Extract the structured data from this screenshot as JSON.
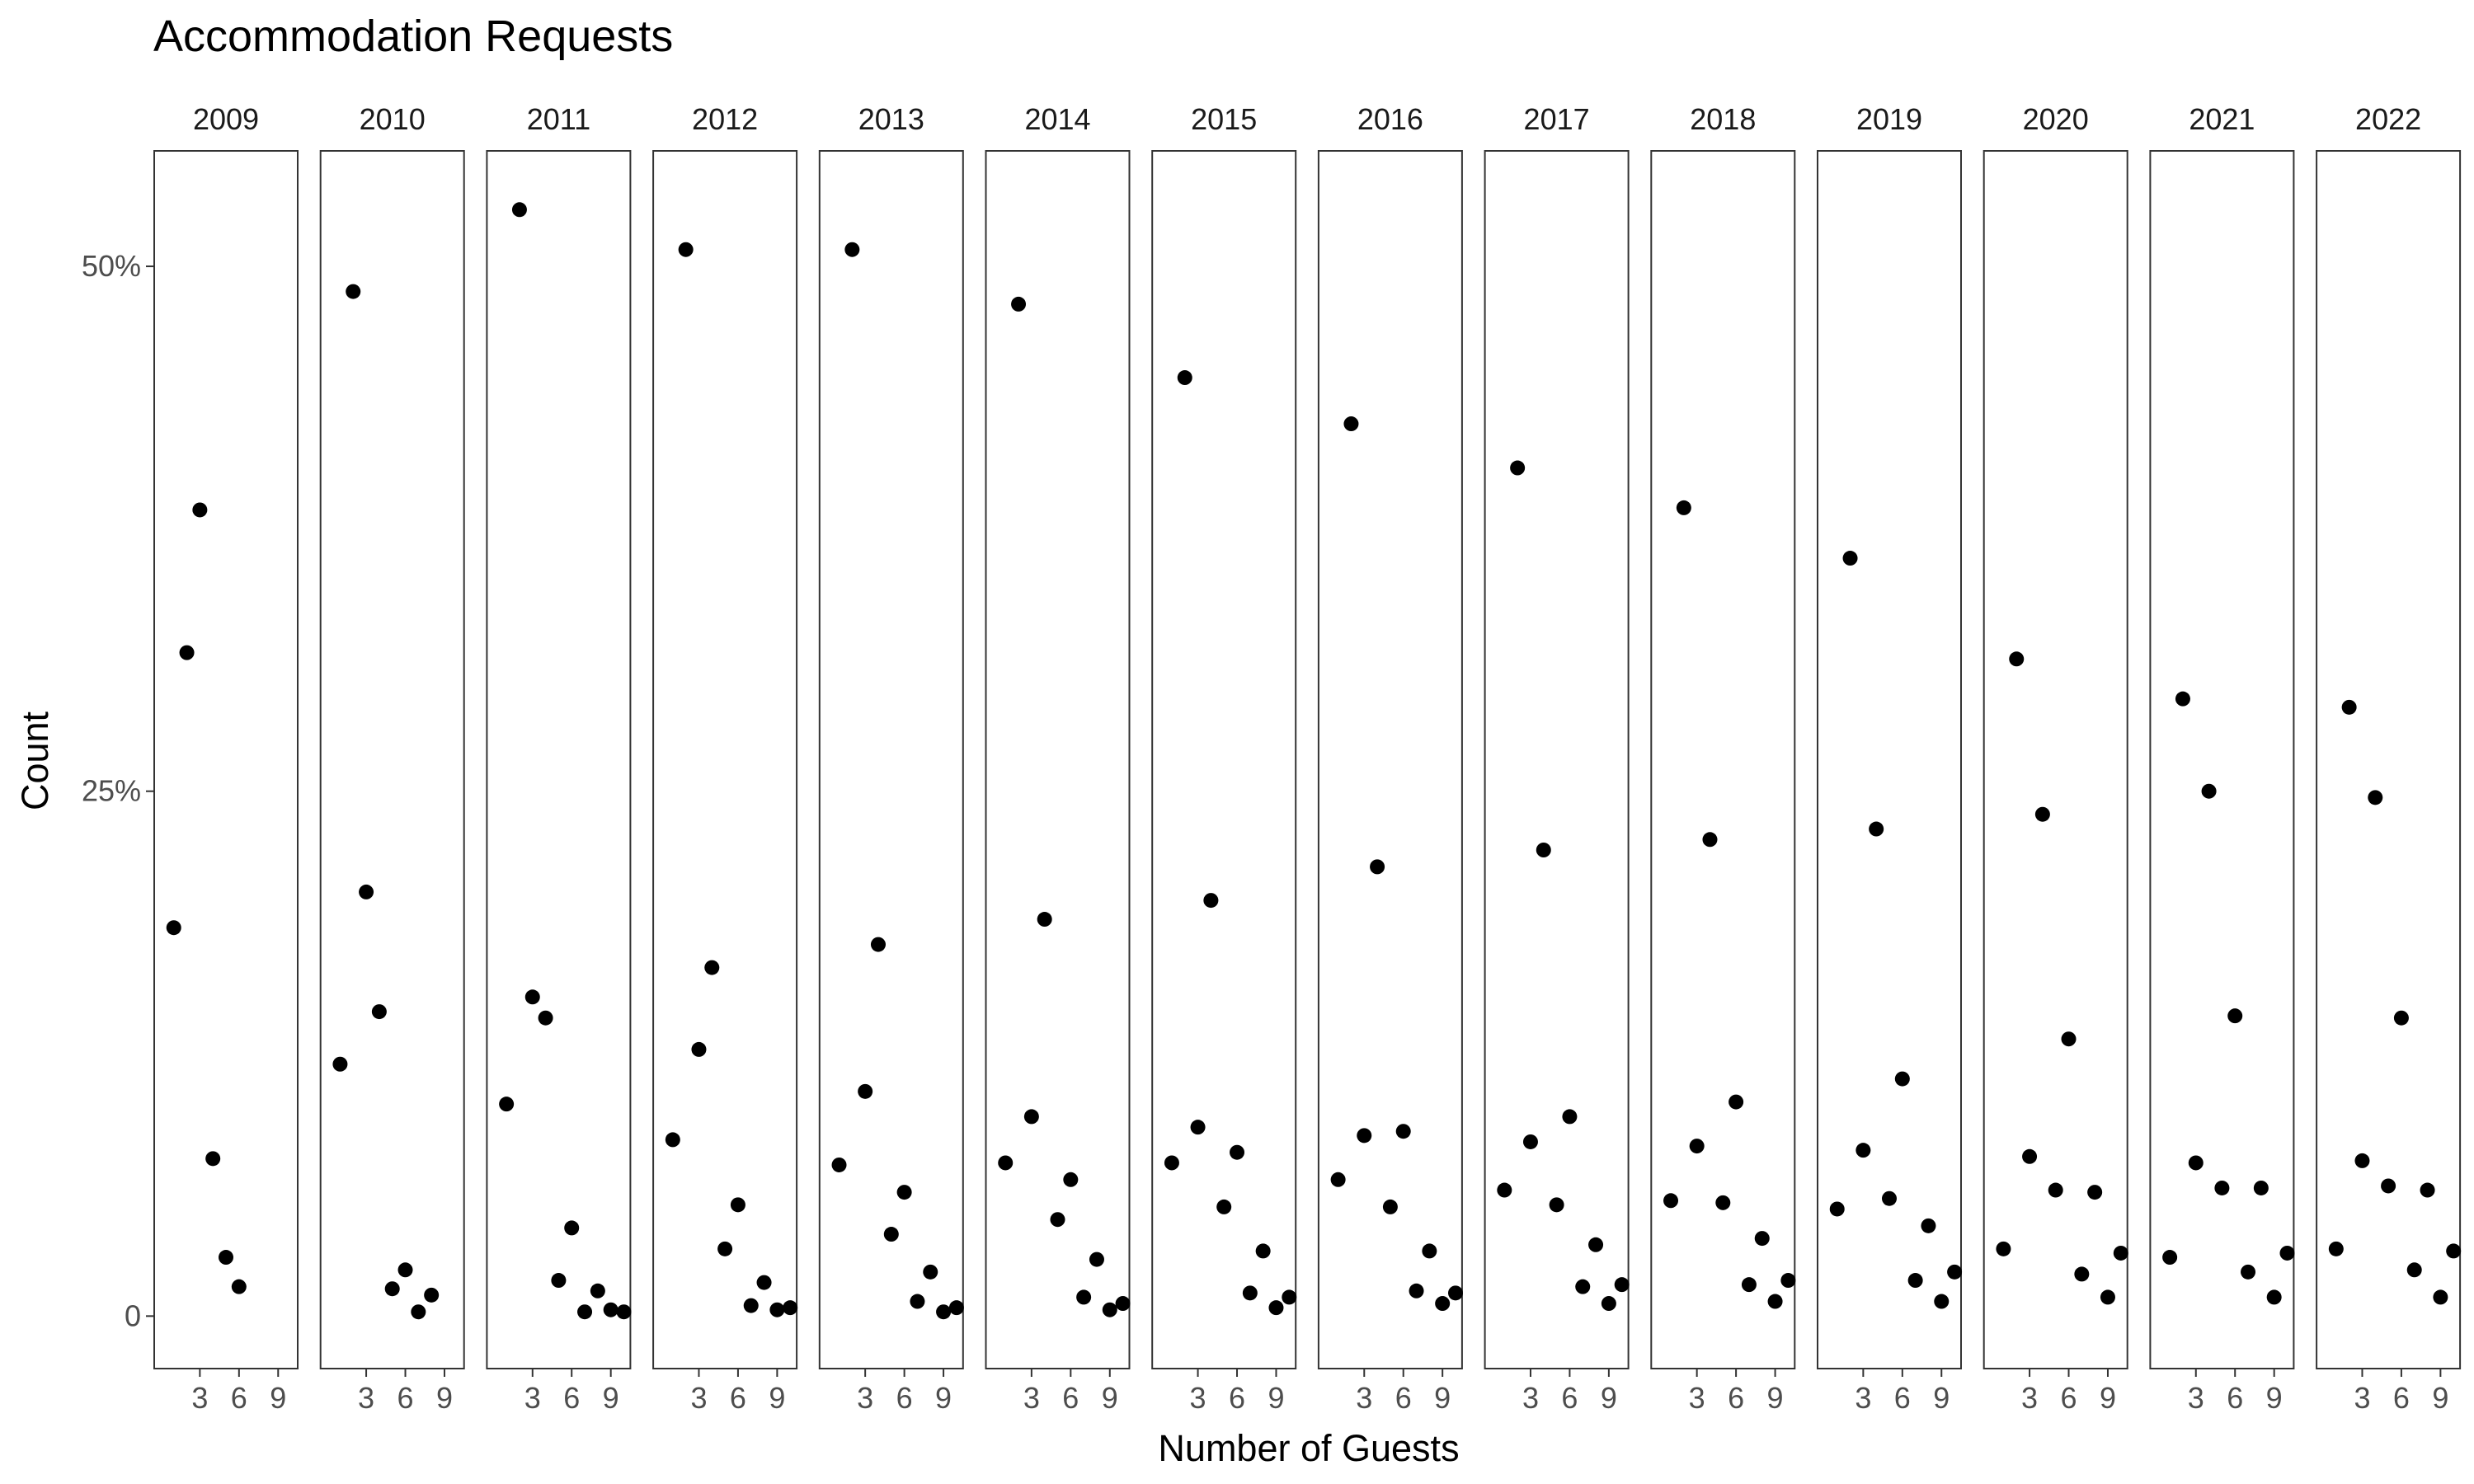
{
  "chart_data": {
    "type": "scatter",
    "title": "Accommodation Requests",
    "xlabel": "Number of Guests",
    "ylabel": "Count",
    "facet_by": "year",
    "xlim": [
      -0.5,
      10.5
    ],
    "ylim": [
      -2.5,
      55.5
    ],
    "x_ticks": [
      3,
      6,
      9
    ],
    "y_ticks": [
      0,
      25,
      50
    ],
    "y_tick_labels": [
      "0",
      "25%",
      "50%"
    ],
    "grid": false,
    "legend": "none",
    "point_color": "#000000",
    "panels": [
      {
        "label": "2009",
        "x": [
          1,
          2,
          3,
          4,
          5,
          6
        ],
        "y": [
          18.5,
          31.6,
          38.4,
          7.5,
          2.8,
          1.4
        ]
      },
      {
        "label": "2010",
        "x": [
          1,
          2,
          3,
          4,
          5,
          6,
          7,
          8
        ],
        "y": [
          12.0,
          48.8,
          20.2,
          14.5,
          1.3,
          2.2,
          0.2,
          1.0
        ]
      },
      {
        "label": "2011",
        "x": [
          1,
          2,
          3,
          4,
          5,
          6,
          7,
          8,
          9,
          10
        ],
        "y": [
          10.1,
          52.7,
          15.2,
          14.2,
          1.7,
          4.2,
          0.2,
          1.2,
          0.3,
          0.2
        ]
      },
      {
        "label": "2012",
        "x": [
          1,
          2,
          3,
          4,
          5,
          6,
          7,
          8,
          9,
          10
        ],
        "y": [
          8.4,
          50.8,
          12.7,
          16.6,
          3.2,
          5.3,
          0.5,
          1.6,
          0.3,
          0.4
        ]
      },
      {
        "label": "2013",
        "x": [
          1,
          2,
          3,
          4,
          5,
          6,
          7,
          8,
          9,
          10
        ],
        "y": [
          7.2,
          50.8,
          10.7,
          17.7,
          3.9,
          5.9,
          0.7,
          2.1,
          0.2,
          0.4
        ]
      },
      {
        "label": "2014",
        "x": [
          1,
          2,
          3,
          4,
          5,
          6,
          7,
          8,
          9,
          10
        ],
        "y": [
          7.3,
          48.2,
          9.5,
          18.9,
          4.6,
          6.5,
          0.9,
          2.7,
          0.3,
          0.6
        ]
      },
      {
        "label": "2015",
        "x": [
          1,
          2,
          3,
          4,
          5,
          6,
          7,
          8,
          9,
          10
        ],
        "y": [
          7.3,
          44.7,
          9.0,
          19.8,
          5.2,
          7.8,
          1.1,
          3.1,
          0.4,
          0.9
        ]
      },
      {
        "label": "2016",
        "x": [
          1,
          2,
          3,
          4,
          5,
          6,
          7,
          8,
          9,
          10
        ],
        "y": [
          6.5,
          42.5,
          8.6,
          21.4,
          5.2,
          8.8,
          1.2,
          3.1,
          0.6,
          1.1
        ]
      },
      {
        "label": "2017",
        "x": [
          1,
          2,
          3,
          4,
          5,
          6,
          7,
          8,
          9,
          10
        ],
        "y": [
          6.0,
          40.4,
          8.3,
          22.2,
          5.3,
          9.5,
          1.4,
          3.4,
          0.6,
          1.5
        ]
      },
      {
        "label": "2018",
        "x": [
          1,
          2,
          3,
          4,
          5,
          6,
          7,
          8,
          9,
          10
        ],
        "y": [
          5.5,
          38.5,
          8.1,
          22.7,
          5.4,
          10.2,
          1.5,
          3.7,
          0.7,
          1.7
        ]
      },
      {
        "label": "2019",
        "x": [
          1,
          2,
          3,
          4,
          5,
          6,
          7,
          8,
          9,
          10
        ],
        "y": [
          5.1,
          36.1,
          7.9,
          23.2,
          5.6,
          11.3,
          1.7,
          4.3,
          0.7,
          2.1
        ]
      },
      {
        "label": "2020",
        "x": [
          1,
          2,
          3,
          4,
          5,
          6,
          7,
          8,
          9,
          10
        ],
        "y": [
          3.2,
          31.3,
          7.6,
          23.9,
          6.0,
          13.2,
          2.0,
          5.9,
          0.9,
          3.0
        ]
      },
      {
        "label": "2021",
        "x": [
          1,
          2,
          3,
          4,
          5,
          6,
          7,
          8,
          9,
          10
        ],
        "y": [
          2.8,
          29.4,
          7.3,
          25.0,
          6.1,
          14.3,
          2.1,
          6.1,
          0.9,
          3.0
        ]
      },
      {
        "label": "2022",
        "x": [
          1,
          2,
          3,
          4,
          5,
          6,
          7,
          8,
          9,
          10
        ],
        "y": [
          3.2,
          29.0,
          7.4,
          24.7,
          6.2,
          14.2,
          2.2,
          6.0,
          0.9,
          3.1
        ]
      }
    ]
  }
}
